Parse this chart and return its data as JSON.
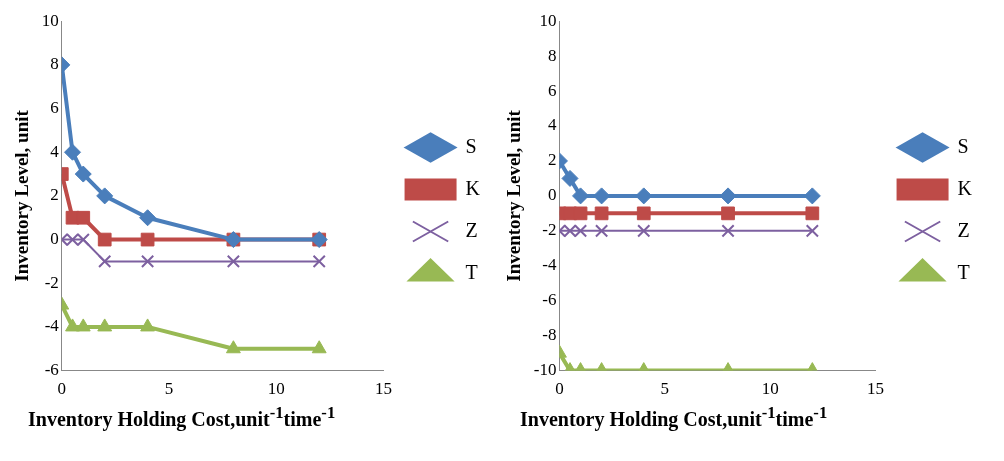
{
  "chart_data": [
    {
      "type": "line",
      "xlabel": "Inventory Holding Cost,unit$^{-1}$time$^{-1}$",
      "ylabel": "Inventory Level, unit",
      "x": [
        0,
        0.5,
        1,
        2,
        4,
        8,
        12
      ],
      "xlim": [
        0,
        15
      ],
      "xticks": [
        0,
        5,
        10,
        15
      ],
      "ylim": [
        -6,
        10
      ],
      "yticks": [
        -6,
        -4,
        -2,
        0,
        2,
        4,
        6,
        8,
        10
      ],
      "grid": false,
      "legend": "right",
      "series": [
        {
          "name": "S",
          "color": "#4a7ebb",
          "marker": "diamond",
          "values": [
            8,
            4,
            3,
            2,
            1,
            0,
            0
          ]
        },
        {
          "name": "K",
          "color": "#be4b48",
          "marker": "square",
          "values": [
            3,
            1,
            1,
            0,
            0,
            0,
            0
          ]
        },
        {
          "name": "Z",
          "color": "#7d60a0",
          "marker": "cross",
          "values": [
            0,
            0,
            0,
            -1,
            -1,
            -1,
            -1
          ]
        },
        {
          "name": "T",
          "color": "#98b954",
          "marker": "triangle",
          "values": [
            -3,
            -4,
            -4,
            -4,
            -4,
            -5,
            -5
          ]
        }
      ]
    },
    {
      "type": "line",
      "xlabel": "Inventory Holding Cost,unit$^{-1}$time$^{-1}$",
      "ylabel": "Inventory Level, unit",
      "x": [
        0,
        0.5,
        1,
        2,
        4,
        8,
        12
      ],
      "xlim": [
        0,
        15
      ],
      "xticks": [
        0,
        5,
        10,
        15
      ],
      "ylim": [
        -10,
        10
      ],
      "yticks": [
        -10,
        -8,
        -6,
        -4,
        -2,
        0,
        2,
        4,
        6,
        8,
        10
      ],
      "grid": false,
      "legend": "right",
      "series": [
        {
          "name": "S",
          "color": "#4a7ebb",
          "marker": "diamond",
          "values": [
            2,
            1,
            0,
            0,
            0,
            0,
            0
          ]
        },
        {
          "name": "K",
          "color": "#be4b48",
          "marker": "square",
          "values": [
            -1,
            -1,
            -1,
            -1,
            -1,
            -1,
            -1
          ]
        },
        {
          "name": "Z",
          "color": "#7d60a0",
          "marker": "cross",
          "values": [
            -2,
            -2,
            -2,
            -2,
            -2,
            -2,
            -2
          ]
        },
        {
          "name": "T",
          "color": "#98b954",
          "marker": "triangle",
          "values": [
            -9,
            -10,
            -10,
            -10,
            -10,
            -10,
            -10
          ]
        }
      ]
    }
  ]
}
